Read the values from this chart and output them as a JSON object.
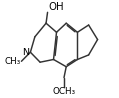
{
  "fig_width": 1.19,
  "fig_height": 0.98,
  "dpi": 100,
  "line_color": "#333333",
  "line_width": 1.05,
  "font_size": 6.8,
  "bg_color": "#ffffff",
  "xlim": [
    -0.5,
    6.5
  ],
  "ylim": [
    -1.2,
    5.8
  ],
  "labels": {
    "OH": "OH",
    "N": "N",
    "NMe": "CH₃",
    "OCH3": "OCH₃",
    "O_label": "O"
  }
}
